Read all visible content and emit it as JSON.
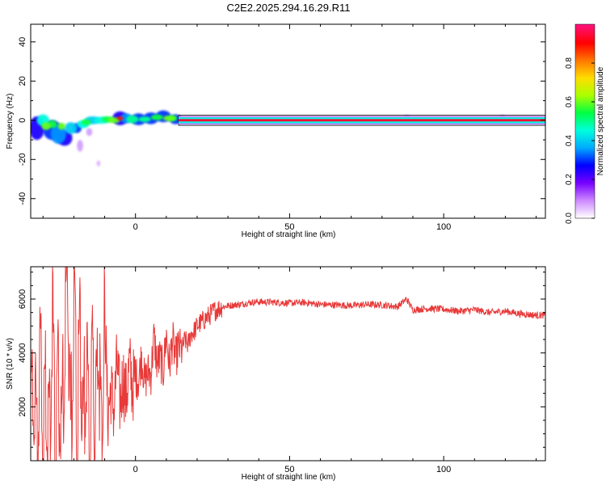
{
  "page_title": "C2E2.2025.294.16.29.R11",
  "chart_data": [
    {
      "type": "heatmap",
      "title": "C2E2.2025.294.16.29.R11",
      "xlabel": "Height of straight line (km)",
      "ylabel": "Frequency (Hz)",
      "xlim": [
        -34,
        133
      ],
      "ylim": [
        -50,
        49
      ],
      "x_ticks": [
        0,
        50,
        100
      ],
      "x_tick_labels": [
        "0",
        "50",
        "100"
      ],
      "y_ticks": [
        -40,
        -20,
        0,
        20,
        40
      ],
      "y_tick_labels": [
        "-40",
        "-20",
        "0",
        "20",
        "40"
      ],
      "grid": false,
      "colorbar": {
        "label": "Normalized spectral amplitude",
        "range": [
          0,
          1
        ],
        "ticks": [
          0,
          0.2,
          0.4,
          0.6,
          0.8
        ],
        "tick_labels": [
          "0.0",
          "0.2",
          "0.4",
          "0.6",
          "0.8"
        ],
        "colors": [
          "#ffffff",
          "#cc88ff",
          "#7700ff",
          "#0000ff",
          "#00aaff",
          "#00ffdd",
          "#00ff44",
          "#aaff00",
          "#ffdd00",
          "#ff7700",
          "#ff0000",
          "#ff1177"
        ]
      },
      "band": {
        "x_start": 14,
        "x_end": 133,
        "center_hz": 0,
        "layers": [
          {
            "half_width_hz": 2.2,
            "amplitude": 0.1
          },
          {
            "half_width_hz": 1.5,
            "amplitude": 0.45
          },
          {
            "half_width_hz": 0.6,
            "amplitude": 0.95
          }
        ]
      },
      "blobs": [
        {
          "x": -32,
          "y": -4,
          "rx": 2.5,
          "ry": 6,
          "amplitude": 0.25
        },
        {
          "x": -30,
          "y": 0,
          "rx": 2,
          "ry": 3,
          "amplitude": 0.45
        },
        {
          "x": -29,
          "y": -3,
          "rx": 1.5,
          "ry": 2,
          "amplitude": 0.6
        },
        {
          "x": -27,
          "y": -5,
          "rx": 3,
          "ry": 5,
          "amplitude": 0.3
        },
        {
          "x": -27,
          "y": -2,
          "rx": 1.5,
          "ry": 2,
          "amplitude": 0.55
        },
        {
          "x": -25,
          "y": -7,
          "rx": 2.5,
          "ry": 5,
          "amplitude": 0.35
        },
        {
          "x": -24,
          "y": -3,
          "rx": 1.2,
          "ry": 1.8,
          "amplitude": 0.6
        },
        {
          "x": -23,
          "y": -9,
          "rx": 2.5,
          "ry": 4,
          "amplitude": 0.25
        },
        {
          "x": -21,
          "y": -4,
          "rx": 2,
          "ry": 3,
          "amplitude": 0.4
        },
        {
          "x": -19,
          "y": -4,
          "rx": 1.5,
          "ry": 2.5,
          "amplitude": 0.3
        },
        {
          "x": -18,
          "y": -13,
          "rx": 1,
          "ry": 3,
          "amplitude": 0.12
        },
        {
          "x": -17,
          "y": -2,
          "rx": 2,
          "ry": 2,
          "amplitude": 0.45
        },
        {
          "x": -16,
          "y": -1,
          "rx": 1.5,
          "ry": 1.5,
          "amplitude": 0.55
        },
        {
          "x": -15,
          "y": -6,
          "rx": 1,
          "ry": 2,
          "amplitude": 0.12
        },
        {
          "x": -14,
          "y": 0,
          "rx": 2.5,
          "ry": 2,
          "amplitude": 0.4
        },
        {
          "x": -12,
          "y": -22,
          "rx": 0.6,
          "ry": 1.5,
          "amplitude": 0.1
        },
        {
          "x": -11,
          "y": 0,
          "rx": 2.5,
          "ry": 1.8,
          "amplitude": 0.45
        },
        {
          "x": -9,
          "y": 0.5,
          "rx": 2,
          "ry": 1.5,
          "amplitude": 0.55
        },
        {
          "x": -7,
          "y": 0,
          "rx": 2,
          "ry": 1.5,
          "amplitude": 0.6
        },
        {
          "x": -5,
          "y": 1,
          "rx": 2.5,
          "ry": 3.5,
          "amplitude": 0.25
        },
        {
          "x": -5,
          "y": 1,
          "rx": 1,
          "ry": 1,
          "amplitude": 0.9
        },
        {
          "x": -3,
          "y": 1,
          "rx": 2,
          "ry": 2.5,
          "amplitude": 0.35
        },
        {
          "x": -1,
          "y": 0.5,
          "rx": 2,
          "ry": 2,
          "amplitude": 0.5
        },
        {
          "x": 1,
          "y": 0.5,
          "rx": 2.5,
          "ry": 3,
          "amplitude": 0.3
        },
        {
          "x": 3,
          "y": 0.5,
          "rx": 2,
          "ry": 1.5,
          "amplitude": 0.5
        },
        {
          "x": 5,
          "y": 1,
          "rx": 2.5,
          "ry": 3,
          "amplitude": 0.3
        },
        {
          "x": 7,
          "y": 1.5,
          "rx": 2,
          "ry": 1.5,
          "amplitude": 0.55
        },
        {
          "x": 9,
          "y": 2,
          "rx": 2.5,
          "ry": 3,
          "amplitude": 0.3
        },
        {
          "x": 11,
          "y": 1,
          "rx": 2,
          "ry": 1.5,
          "amplitude": 0.6
        },
        {
          "x": 12,
          "y": 1,
          "rx": 1.5,
          "ry": 1.5,
          "amplitude": 0.55
        },
        {
          "x": 13,
          "y": 0.5,
          "rx": 2,
          "ry": 2.5,
          "amplitude": 0.3
        },
        {
          "x": 88,
          "y": 1,
          "rx": 1,
          "ry": 2,
          "amplitude": 0.1
        },
        {
          "x": 119,
          "y": 1,
          "rx": 1,
          "ry": 2,
          "amplitude": 0.1
        }
      ]
    },
    {
      "type": "line",
      "xlabel": "Height of straight line (km)",
      "ylabel": "SNR (10 * v/v)",
      "xlim": [
        -34,
        133
      ],
      "ylim": [
        0,
        7200
      ],
      "x_ticks": [
        0,
        50,
        100
      ],
      "x_tick_labels": [
        "0",
        "50",
        "100"
      ],
      "y_ticks": [
        2000,
        4000,
        6000
      ],
      "y_tick_labels": [
        "2000",
        "4000",
        "6000"
      ],
      "grid": false,
      "line_color": "#e83a3a",
      "series": [
        {
          "x": [
            -34,
            -33,
            -32,
            -31,
            -30,
            -29,
            -28,
            -27,
            -26,
            -25,
            -24,
            -23,
            -22,
            -21,
            -20,
            -19,
            -18,
            -17,
            -16,
            -15,
            -14,
            -13,
            -12,
            -11,
            -10,
            -9,
            -8,
            -7,
            -6,
            -5,
            -4,
            -3,
            -2,
            -1,
            0,
            1,
            2,
            3,
            4,
            5,
            6,
            7,
            8,
            9,
            10,
            11,
            12,
            13,
            14,
            15,
            16,
            17,
            18,
            19,
            20,
            22,
            24,
            26,
            28,
            30,
            32,
            34,
            36,
            38,
            40,
            45,
            50,
            55,
            60,
            65,
            70,
            75,
            80,
            85,
            88,
            90,
            95,
            100,
            105,
            110,
            115,
            120,
            125,
            130,
            133
          ],
          "y": [
            700,
            3100,
            500,
            4200,
            800,
            2700,
            300,
            5600,
            500,
            3300,
            200,
            4600,
            7100,
            400,
            6600,
            800,
            5300,
            600,
            4200,
            1000,
            3900,
            900,
            4600,
            200,
            5900,
            1600,
            2700,
            1800,
            3700,
            2100,
            3100,
            2300,
            3600,
            2700,
            3100,
            3000,
            3900,
            2900,
            3300,
            3200,
            4600,
            3600,
            3800,
            3300,
            4700,
            3500,
            4500,
            3800,
            4200,
            4100,
            4500,
            4300,
            4700,
            4800,
            5000,
            5200,
            5400,
            5600,
            5700,
            5750,
            5780,
            5800,
            5850,
            5880,
            5900,
            5880,
            5850,
            5870,
            5800,
            5780,
            5760,
            5800,
            5780,
            5720,
            6000,
            5600,
            5650,
            5620,
            5550,
            5600,
            5500,
            5550,
            5450,
            5400,
            5400
          ]
        }
      ]
    }
  ]
}
